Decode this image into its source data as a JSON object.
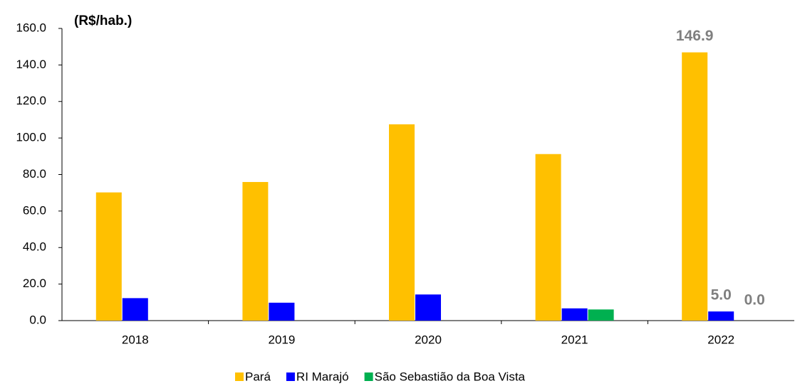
{
  "chart_data": {
    "type": "bar",
    "unit_label": "(R$/hab.)",
    "categories": [
      "2018",
      "2019",
      "2020",
      "2021",
      "2022"
    ],
    "series": [
      {
        "name": "Pará",
        "color": "#ffc000",
        "values": [
          70.2,
          75.9,
          107.5,
          91.2,
          146.9
        ],
        "value_labels": [
          null,
          null,
          null,
          null,
          "146.9"
        ]
      },
      {
        "name": "RI Marajó",
        "color": "#0000ff",
        "values": [
          12.3,
          9.8,
          14.3,
          6.7,
          5.0
        ],
        "value_labels": [
          null,
          null,
          null,
          null,
          "5.0"
        ]
      },
      {
        "name": "São Sebastião da Boa Vista",
        "color": "#00b050",
        "values": [
          0,
          0,
          0,
          6.1,
          0
        ],
        "value_labels": [
          null,
          null,
          null,
          null,
          "0.0"
        ]
      }
    ],
    "ylim": [
      0,
      160
    ],
    "yticks": [
      {
        "value": 0,
        "label": "0.0"
      },
      {
        "value": 20,
        "label": "20.0"
      },
      {
        "value": 40,
        "label": "40.0"
      },
      {
        "value": 60,
        "label": "60.0"
      },
      {
        "value": 80,
        "label": "80.0"
      },
      {
        "value": 100,
        "label": "100.0"
      },
      {
        "value": 120,
        "label": "120.0"
      },
      {
        "value": 140,
        "label": "140.0"
      },
      {
        "value": 160,
        "label": "160.0"
      }
    ],
    "grid": false,
    "legend": "bottom"
  }
}
